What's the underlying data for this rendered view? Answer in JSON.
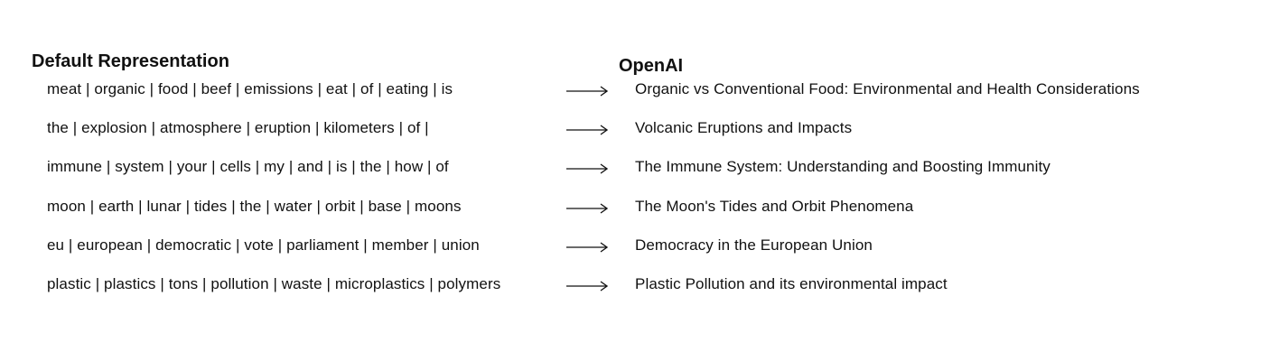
{
  "headers": {
    "left": "Default Representation",
    "right": "OpenAI"
  },
  "rows": [
    {
      "keywords": "meat | organic | food | beef | emissions | eat | of | eating | is",
      "label": "Organic vs Conventional Food: Environmental and Health Considerations"
    },
    {
      "keywords": "the | explosion | atmosphere | eruption | kilometers | of |",
      "label": "Volcanic Eruptions and Impacts"
    },
    {
      "keywords": "immune | system | your | cells | my | and | is | the | how | of",
      "label": "The Immune System: Understanding and Boosting Immunity"
    },
    {
      "keywords": "moon | earth | lunar | tides | the | water | orbit | base | moons",
      "label": "The Moon's Tides and Orbit Phenomena"
    },
    {
      "keywords": "eu | european | democratic | vote | parliament | member | union",
      "label": "Democracy in the European Union"
    },
    {
      "keywords": "plastic | plastics | tons | pollution | waste | microplastics | polymers",
      "label": "Plastic Pollution and its environmental impact"
    }
  ],
  "icons": {
    "arrow": "right-arrow-icon"
  },
  "colors": {
    "text": "#111111",
    "background": "#ffffff"
  }
}
